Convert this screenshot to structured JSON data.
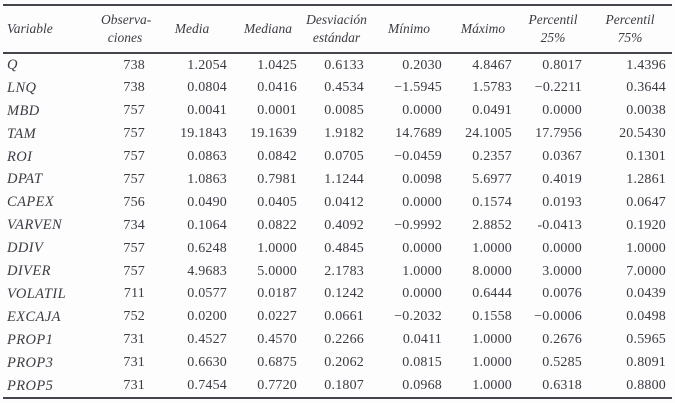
{
  "table": {
    "columns": [
      {
        "label": "Variable"
      },
      {
        "label": "Observa-\nciones"
      },
      {
        "label": "Media"
      },
      {
        "label": "Mediana"
      },
      {
        "label": "Desviación\nestándar"
      },
      {
        "label": "Mínimo"
      },
      {
        "label": "Máximo"
      },
      {
        "label": "Percentil\n25%"
      },
      {
        "label": "Percentil\n75%"
      }
    ],
    "rows": [
      {
        "variable": "Q",
        "values": [
          "738",
          "1.2054",
          "1.0425",
          "0.6133",
          "0.2030",
          "4.8467",
          "0.8017",
          "1.4396"
        ]
      },
      {
        "variable": "LNQ",
        "values": [
          "738",
          "0.0804",
          "0.0416",
          "0.4534",
          "−1.5945",
          "1.5783",
          "−0.2211",
          "0.3644"
        ]
      },
      {
        "variable": "MBD",
        "values": [
          "757",
          "0.0041",
          "0.0001",
          "0.0085",
          "0.0000",
          "0.0491",
          "0.0000",
          "0.0038"
        ]
      },
      {
        "variable": "TAM",
        "values": [
          "757",
          "19.1843",
          "19.1639",
          "1.9182",
          "14.7689",
          "24.1005",
          "17.7956",
          "20.5430"
        ]
      },
      {
        "variable": "ROI",
        "values": [
          "757",
          "0.0863",
          "0.0842",
          "0.0705",
          "−0.0459",
          "0.2357",
          "0.0367",
          "0.1301"
        ]
      },
      {
        "variable": "DPAT",
        "values": [
          "757",
          "1.0863",
          "0.7981",
          "1.1244",
          "0.0098",
          "5.6977",
          "0.4019",
          "1.2861"
        ]
      },
      {
        "variable": "CAPEX",
        "values": [
          "756",
          "0.0490",
          "0.0405",
          "0.0412",
          "0.0000",
          "0.1574",
          "0.0193",
          "0.0647"
        ]
      },
      {
        "variable": "VARVEN",
        "values": [
          "734",
          "0.1064",
          "0.0822",
          "0.4092",
          "−0.9992",
          "2.8852",
          "-0.0413",
          "0.1920"
        ]
      },
      {
        "variable": "DDIV",
        "values": [
          "757",
          "0.6248",
          "1.0000",
          "0.4845",
          "0.0000",
          "1.0000",
          "0.0000",
          "1.0000"
        ]
      },
      {
        "variable": "DIVER",
        "values": [
          "757",
          "4.9683",
          "5.0000",
          "2.1783",
          "1.0000",
          "8.0000",
          "3.0000",
          "7.0000"
        ]
      },
      {
        "variable": "VOLATIL",
        "values": [
          "711",
          "0.0577",
          "0.0187",
          "0.1242",
          "0.0000",
          "0.6444",
          "0.0076",
          "0.0439"
        ]
      },
      {
        "variable": "EXCAJA",
        "values": [
          "752",
          "0.0200",
          "0.0227",
          "0.0661",
          "−0.2032",
          "0.1558",
          "−0.0006",
          "0.0498"
        ]
      },
      {
        "variable": "PROP1",
        "values": [
          "731",
          "0.4527",
          "0.4570",
          "0.2266",
          "0.0411",
          "1.0000",
          "0.2676",
          "0.5965"
        ]
      },
      {
        "variable": "PROP3",
        "values": [
          "731",
          "0.6630",
          "0.6875",
          "0.2062",
          "0.0815",
          "1.0000",
          "0.5285",
          "0.8091"
        ]
      },
      {
        "variable": "PROP5",
        "values": [
          "731",
          "0.7454",
          "0.7720",
          "0.1807",
          "0.0968",
          "1.0000",
          "0.6318",
          "0.8800"
        ]
      }
    ]
  },
  "colors": {
    "text": "#3b3b44",
    "rule": "#45454d",
    "background": "#fdfdfd"
  }
}
